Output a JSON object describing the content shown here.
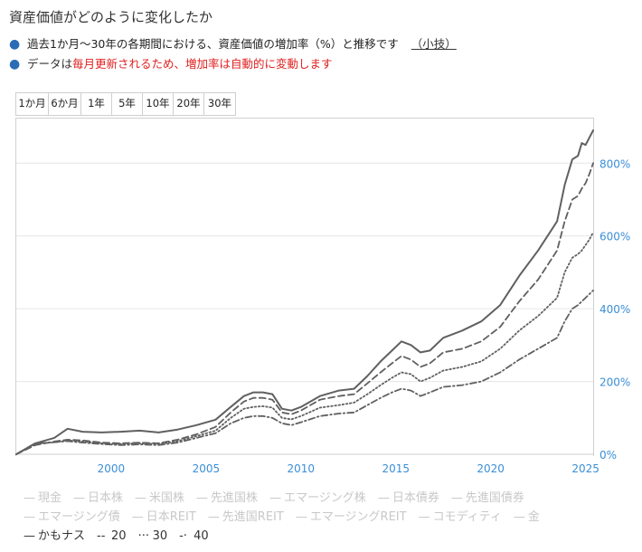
{
  "header": {
    "title": "資産価値がどのように変化したか"
  },
  "bullets": {
    "line1": "過去1か月〜30年の各期間における、資産価値の増加率（%）と推移です",
    "tip": "（小技）",
    "line2_black": "データは",
    "line2_red": "毎月更新されるため、増加率は自動的に変動します"
  },
  "range_tabs": [
    "1か月",
    "6か月",
    "1年",
    "5年",
    "10年",
    "20年",
    "30年"
  ],
  "legend": {
    "row1": [
      {
        "label": "現金",
        "sym": "—",
        "active": false
      },
      {
        "label": "日本株",
        "sym": "—",
        "active": false
      },
      {
        "label": "米国株",
        "sym": "—",
        "active": false
      },
      {
        "label": "先進国株",
        "sym": "—",
        "active": false
      },
      {
        "label": "エマージング株",
        "sym": "—",
        "active": false
      },
      {
        "label": "日本債券",
        "sym": "—",
        "active": false
      },
      {
        "label": "先進国債券",
        "sym": "—",
        "active": false
      }
    ],
    "row2": [
      {
        "label": "エマージング債",
        "sym": "—",
        "active": false
      },
      {
        "label": "日本REIT",
        "sym": "—",
        "active": false
      },
      {
        "label": "先進国REIT",
        "sym": "—",
        "active": false
      },
      {
        "label": "エマージングREIT",
        "sym": "—",
        "active": false
      },
      {
        "label": "コモディティ",
        "sym": "—",
        "active": false
      },
      {
        "label": "金",
        "sym": "—",
        "active": false
      }
    ],
    "row3": [
      {
        "label": "かもナス",
        "sym": "—",
        "active": true
      },
      {
        "label": "20",
        "sym": "--",
        "active": true
      },
      {
        "label": "30",
        "sym": "···",
        "active": true
      },
      {
        "label": "40",
        "sym": "-·",
        "active": true
      }
    ]
  },
  "chart_data": {
    "type": "line",
    "xlim": [
      1995,
      2025.4
    ],
    "ylim": [
      0,
      920
    ],
    "x_ticks": [
      2000,
      2005,
      2010,
      2015,
      2020,
      2025
    ],
    "y_ticks": [
      0,
      200,
      400,
      600,
      800
    ],
    "y_tick_suffix": "%",
    "axis_color": "#3a8fd8",
    "grid": true,
    "series": [
      {
        "name": "かもナス",
        "style": "solid",
        "color": "#606060",
        "x": [
          1995,
          1996,
          1997,
          1997.7,
          1998.5,
          1999.5,
          2000.5,
          2001.5,
          2002.5,
          2003.5,
          2004.5,
          2005.5,
          2006.3,
          2007,
          2007.5,
          2008,
          2008.5,
          2009,
          2009.5,
          2010,
          2011,
          2012,
          2012.8,
          2013.5,
          2014.2,
          2014.8,
          2015.3,
          2015.8,
          2016.3,
          2016.8,
          2017.5,
          2018.5,
          2019.5,
          2020.5,
          2021.5,
          2022.5,
          2023.5,
          2023.9,
          2024.3,
          2024.6,
          2024.8,
          2025,
          2025.2,
          2025.4
        ],
        "values": [
          0,
          30,
          45,
          70,
          62,
          60,
          62,
          65,
          60,
          68,
          80,
          95,
          130,
          160,
          170,
          170,
          165,
          125,
          120,
          130,
          160,
          175,
          180,
          215,
          255,
          285,
          310,
          300,
          280,
          285,
          320,
          340,
          365,
          410,
          490,
          560,
          640,
          740,
          810,
          820,
          855,
          850,
          870,
          890
        ]
      },
      {
        "name": "20",
        "style": "dashed",
        "color": "#606060",
        "x": [
          1995,
          1996,
          1997,
          1997.7,
          1998.5,
          1999.5,
          2000.5,
          2001.5,
          2002.5,
          2003.5,
          2004.5,
          2005.5,
          2006.3,
          2007,
          2007.5,
          2008,
          2008.5,
          2009,
          2009.5,
          2010,
          2011,
          2012,
          2012.8,
          2013.5,
          2014.2,
          2014.8,
          2015.3,
          2015.8,
          2016.3,
          2016.8,
          2017.5,
          2018.5,
          2019.5,
          2020.5,
          2021.5,
          2022.5,
          2023.5,
          2023.9,
          2024.3,
          2024.6,
          2024.8,
          2025,
          2025.2,
          2025.4
        ],
        "values": [
          0,
          25,
          35,
          40,
          38,
          32,
          30,
          32,
          30,
          40,
          55,
          75,
          115,
          145,
          155,
          155,
          150,
          115,
          110,
          120,
          150,
          160,
          165,
          195,
          225,
          250,
          270,
          260,
          240,
          250,
          280,
          290,
          310,
          350,
          420,
          480,
          560,
          640,
          700,
          710,
          730,
          745,
          770,
          800
        ]
      },
      {
        "name": "30",
        "style": "dotted",
        "color": "#606060",
        "x": [
          1995,
          1996,
          1997,
          1997.7,
          1998.5,
          1999.5,
          2000.5,
          2001.5,
          2002.5,
          2003.5,
          2004.5,
          2005.5,
          2006.3,
          2007,
          2007.5,
          2008,
          2008.5,
          2009,
          2009.5,
          2010,
          2011,
          2012,
          2012.8,
          2013.5,
          2014.2,
          2014.8,
          2015.3,
          2015.8,
          2016.3,
          2016.8,
          2017.5,
          2018.5,
          2019.5,
          2020.5,
          2021.5,
          2022.5,
          2023.5,
          2023.9,
          2024.3,
          2024.6,
          2024.8,
          2025,
          2025.2,
          2025.4
        ],
        "values": [
          0,
          28,
          33,
          38,
          35,
          30,
          28,
          30,
          28,
          36,
          50,
          65,
          100,
          125,
          130,
          132,
          128,
          100,
          96,
          105,
          128,
          135,
          142,
          165,
          190,
          210,
          225,
          220,
          200,
          210,
          230,
          240,
          255,
          290,
          340,
          380,
          430,
          500,
          540,
          550,
          560,
          575,
          590,
          610
        ]
      },
      {
        "name": "40",
        "style": "dashdot",
        "color": "#606060",
        "x": [
          1995,
          1996,
          1997,
          1997.7,
          1998.5,
          1999.5,
          2000.5,
          2001.5,
          2002.5,
          2003.5,
          2004.5,
          2005.5,
          2006.3,
          2007,
          2007.5,
          2008,
          2008.5,
          2009,
          2009.5,
          2010,
          2011,
          2012,
          2012.8,
          2013.5,
          2014.2,
          2014.8,
          2015.3,
          2015.8,
          2016.3,
          2016.8,
          2017.5,
          2018.5,
          2019.5,
          2020.5,
          2021.5,
          2022.5,
          2023.5,
          2023.9,
          2024.3,
          2024.6,
          2024.8,
          2025,
          2025.2,
          2025.4
        ],
        "values": [
          0,
          30,
          33,
          36,
          32,
          28,
          25,
          27,
          25,
          32,
          45,
          58,
          85,
          100,
          105,
          105,
          100,
          85,
          80,
          88,
          105,
          112,
          115,
          135,
          155,
          170,
          180,
          175,
          160,
          170,
          185,
          190,
          200,
          225,
          260,
          290,
          320,
          365,
          400,
          410,
          420,
          430,
          440,
          450
        ]
      }
    ]
  }
}
